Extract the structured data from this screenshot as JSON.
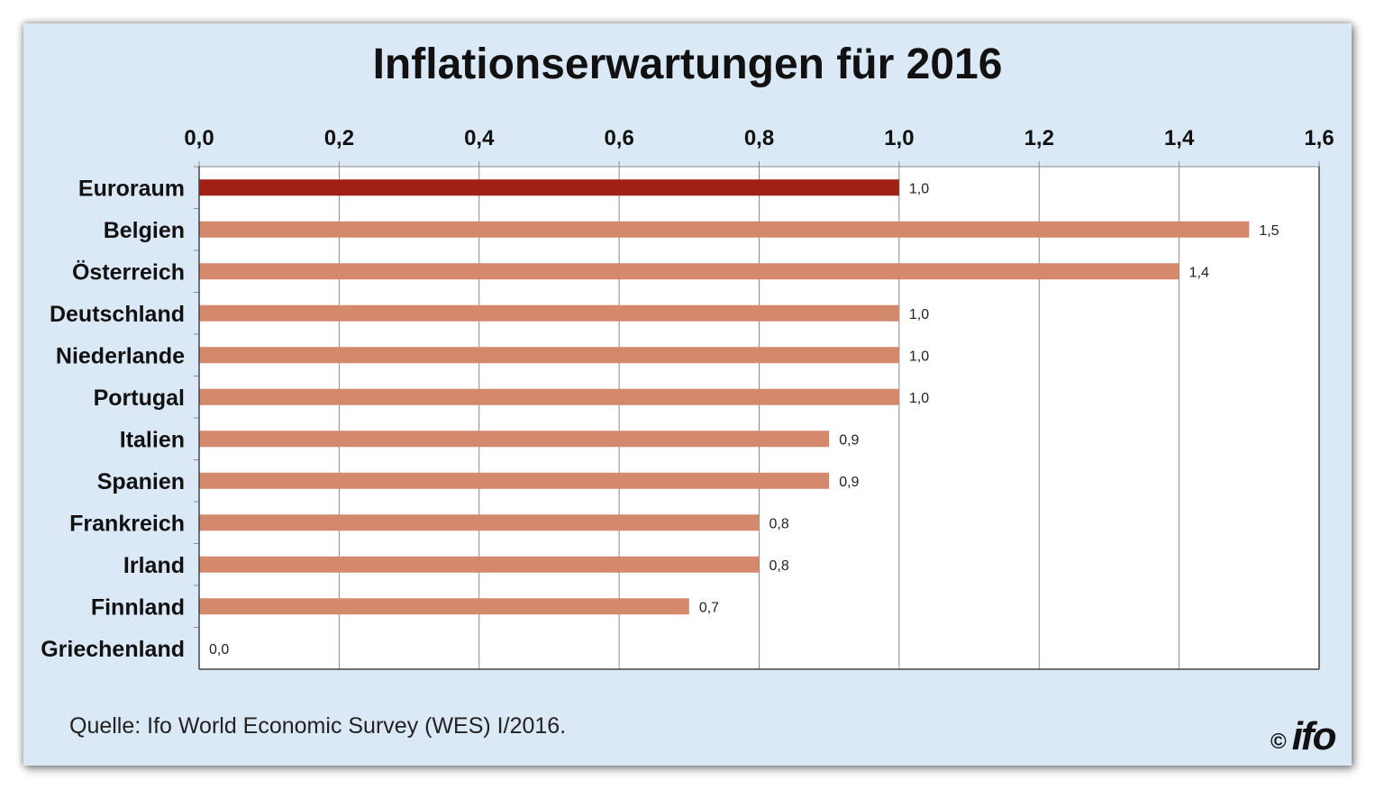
{
  "title": "Inflationserwartungen für 2016",
  "source": "Quelle: Ifo World Economic Survey (WES) I/2016.",
  "copyright": "©",
  "logo_text": "ifo",
  "colors": {
    "background": "#dbe9f7",
    "highlight_bar": "#a11f15",
    "bar": "#d4896d",
    "grid": "#8a8a8a"
  },
  "chart_data": {
    "type": "bar",
    "orientation": "horizontal",
    "title": "Inflationserwartungen für 2016",
    "categories": [
      "Euroraum",
      "Belgien",
      "Österreich",
      "Deutschland",
      "Niederlande",
      "Portugal",
      "Italien",
      "Spanien",
      "Frankreich",
      "Irland",
      "Finnland",
      "Griechenland"
    ],
    "values": [
      1.0,
      1.5,
      1.4,
      1.0,
      1.0,
      1.0,
      0.9,
      0.9,
      0.8,
      0.8,
      0.7,
      0.0
    ],
    "value_labels": [
      "1,0",
      "1,5",
      "1,4",
      "1,0",
      "1,0",
      "1,0",
      "0,9",
      "0,9",
      "0,8",
      "0,8",
      "0,7",
      "0,0"
    ],
    "highlight_index": 0,
    "xlim": [
      0,
      1.6
    ],
    "xticks": [
      0,
      0.2,
      0.4,
      0.6,
      0.8,
      1.0,
      1.2,
      1.4,
      1.6
    ],
    "xtick_labels": [
      "0,0",
      "0,2",
      "0,4",
      "0,6",
      "0,8",
      "1,0",
      "1,2",
      "1,4",
      "1,6"
    ],
    "x_axis_position": "top",
    "grid": true,
    "legend": "none"
  }
}
